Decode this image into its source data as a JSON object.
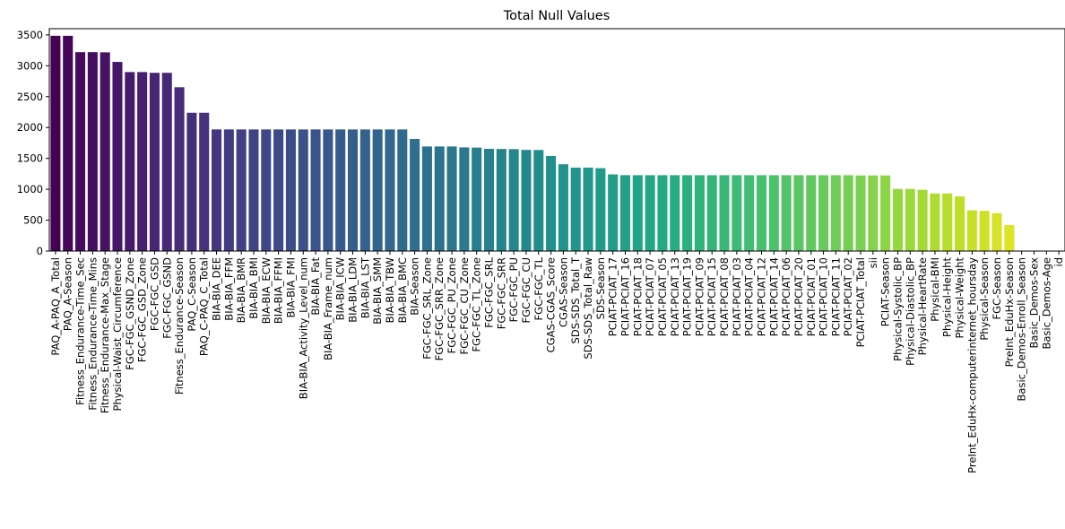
{
  "chart_data": {
    "type": "bar",
    "title": "Total Null Values",
    "xlabel": "",
    "ylabel": "",
    "ylim": [
      0,
      3600
    ],
    "yticks": [
      0,
      500,
      1000,
      1500,
      2000,
      2500,
      3000,
      3500
    ],
    "grid": false,
    "colormap": "viridis",
    "categories": [
      "PAQ_A-PAQ_A_Total",
      "PAQ_A-Season",
      "Fitness_Endurance-Time_Sec",
      "Fitness_Endurance-Time_Mins",
      "Fitness_Endurance-Max_Stage",
      "Physical-Waist_Circumference",
      "FGC-FGC_GSND_Zone",
      "FGC-FGC_GSD_Zone",
      "FGC-FGC_GSD",
      "FGC-FGC_GSND",
      "Fitness_Endurance-Season",
      "PAQ_C-Season",
      "PAQ_C-PAQ_C_Total",
      "BIA-BIA_DEE",
      "BIA-BIA_FFM",
      "BIA-BIA_BMR",
      "BIA-BIA_BMI",
      "BIA-BIA_ECW",
      "BIA-BIA_FFMI",
      "BIA-BIA_FMI",
      "BIA-BIA_Activity_Level_num",
      "BIA-BIA_Fat",
      "BIA-BIA_Frame_num",
      "BIA-BIA_ICW",
      "BIA-BIA_LDM",
      "BIA-BIA_LST",
      "BIA-BIA_SMM",
      "BIA-BIA_TBW",
      "BIA-BIA_BMC",
      "BIA-Season",
      "FGC-FGC_SRL_Zone",
      "FGC-FGC_SRR_Zone",
      "FGC-FGC_PU_Zone",
      "FGC-FGC_CU_Zone",
      "FGC-FGC_TL_Zone",
      "FGC-FGC_SRL",
      "FGC-FGC_SRR",
      "FGC-FGC_PU",
      "FGC-FGC_CU",
      "FGC-FGC_TL",
      "CGAS-CGAS_Score",
      "CGAS-Season",
      "SDS-SDS_Total_T",
      "SDS-SDS_Total_Raw",
      "SDS-Season",
      "PCIAT-PCIAT_17",
      "PCIAT-PCIAT_16",
      "PCIAT-PCIAT_18",
      "PCIAT-PCIAT_07",
      "PCIAT-PCIAT_05",
      "PCIAT-PCIAT_13",
      "PCIAT-PCIAT_19",
      "PCIAT-PCIAT_09",
      "PCIAT-PCIAT_15",
      "PCIAT-PCIAT_08",
      "PCIAT-PCIAT_03",
      "PCIAT-PCIAT_04",
      "PCIAT-PCIAT_12",
      "PCIAT-PCIAT_14",
      "PCIAT-PCIAT_06",
      "PCIAT-PCIAT_20",
      "PCIAT-PCIAT_01",
      "PCIAT-PCIAT_10",
      "PCIAT-PCIAT_11",
      "PCIAT-PCIAT_02",
      "PCIAT-PCIAT_Total",
      "sii",
      "PCIAT-Season",
      "Physical-Systolic_BP",
      "Physical-Diastolic_BP",
      "Physical-HeartRate",
      "Physical-BMI",
      "Physical-Height",
      "Physical-Weight",
      "PreInt_EduHx-computerinternet_hoursday",
      "Physical-Season",
      "FGC-Season",
      "PreInt_EduHx-Season",
      "Basic_Demos-Enroll_Season",
      "Basic_Demos-Sex",
      "Basic_Demos-Age",
      "id"
    ],
    "values": [
      3485,
      3485,
      3220,
      3220,
      3217,
      3062,
      2898,
      2898,
      2886,
      2886,
      2652,
      2239,
      2239,
      1969,
      1969,
      1969,
      1969,
      1969,
      1969,
      1969,
      1969,
      1969,
      1969,
      1969,
      1969,
      1969,
      1969,
      1969,
      1969,
      1815,
      1693,
      1693,
      1693,
      1678,
      1675,
      1655,
      1653,
      1650,
      1638,
      1636,
      1539,
      1405,
      1351,
      1351,
      1342,
      1241,
      1229,
      1228,
      1228,
      1228,
      1228,
      1228,
      1228,
      1228,
      1228,
      1228,
      1228,
      1228,
      1228,
      1228,
      1228,
      1228,
      1228,
      1228,
      1228,
      1224,
      1224,
      1224,
      1006,
      1006,
      993,
      932,
      932,
      884,
      659,
      650,
      614,
      420,
      0,
      0,
      0,
      0
    ]
  }
}
